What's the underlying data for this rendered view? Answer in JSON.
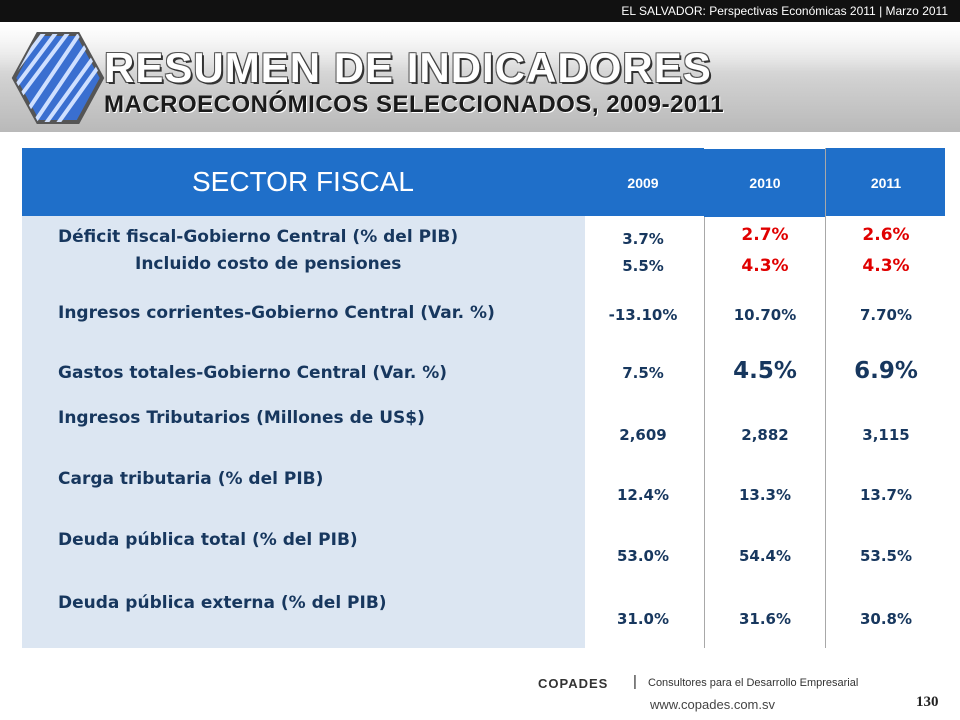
{
  "top_bar": {
    "text": "EL SALVADOR: Perspectivas Económicas 2011 | Marzo 2011"
  },
  "header": {
    "title": "RESUMEN DE INDICADORES",
    "subtitle": "MACROECONÓMICOS SELECCIONADOS, 2009-2011",
    "logo_icon": "copades-hexagon-logo"
  },
  "table": {
    "section": "SECTOR FISCAL",
    "years": [
      "2009",
      "2010",
      "2011"
    ],
    "rows": [
      {
        "label": "Déficit fiscal-Gobierno Central (% del PIB)",
        "values": [
          "3.7%",
          "2.7%",
          "2.6%"
        ]
      },
      {
        "label": "Incluido costo de pensiones",
        "values": [
          "5.5%",
          "4.3%",
          "4.3%"
        ]
      },
      {
        "label": "Ingresos corrientes-Gobierno Central (Var. %)",
        "values": [
          "-13.10%",
          "10.70%",
          "7.70%"
        ]
      },
      {
        "label": "Gastos totales-Gobierno Central (Var. %)",
        "values": [
          "7.5%",
          "4.5%",
          "6.9%"
        ]
      },
      {
        "label": "Ingresos Tributarios (Millones de US$)",
        "values": [
          "2,609",
          "2,882",
          "3,115"
        ]
      },
      {
        "label": "Carga tributaria (% del PIB)",
        "values": [
          "12.4%",
          "13.3%",
          "13.7%"
        ]
      },
      {
        "label": "Deuda pública total (% del PIB)",
        "values": [
          "53.0%",
          "54.4%",
          "53.5%"
        ]
      },
      {
        "label": "Deuda pública externa (% del PIB)",
        "values": [
          "31.0%",
          "31.6%",
          "30.8%"
        ]
      }
    ]
  },
  "colors": {
    "header_blue": "#1f6fc9",
    "band_light": "#dce6f2",
    "text_navy": "#17375e",
    "highlight_red": "#e00000"
  },
  "footer": {
    "brand": "COPADES",
    "separator": "|",
    "tagline": "Consultores para el Desarrollo Empresarial",
    "url": "www.copades.com.sv",
    "page_number": "130"
  }
}
